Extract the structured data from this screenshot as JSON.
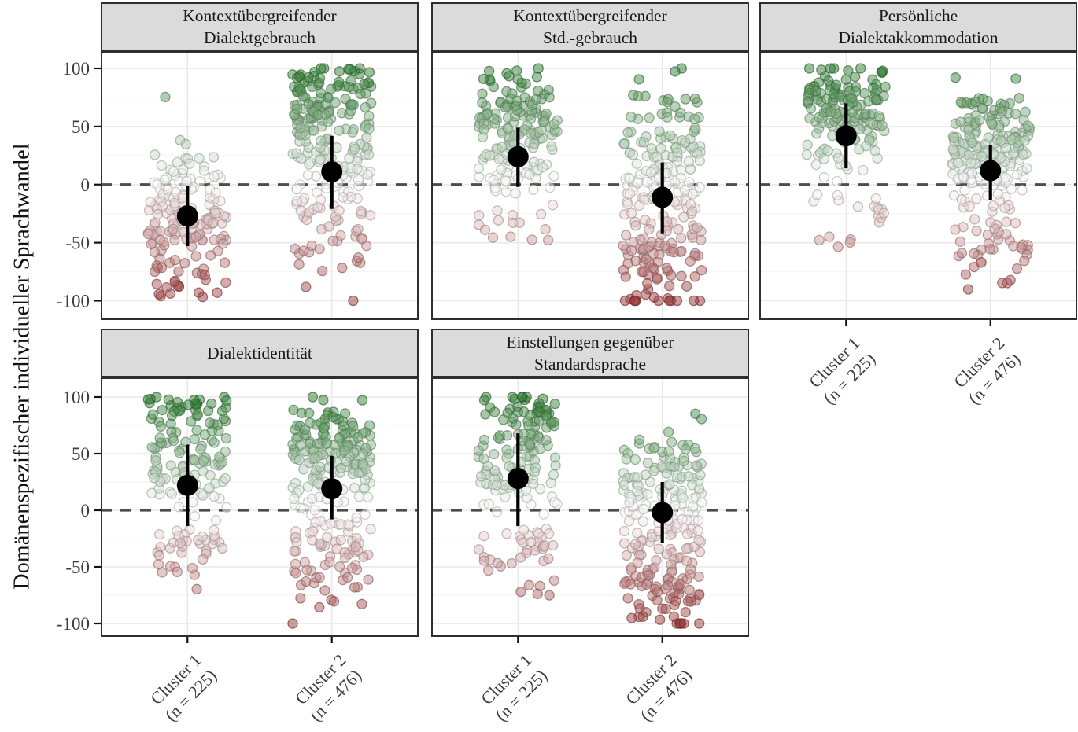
{
  "figure": {
    "y_axis_label": "Domänenspezifischer individueller Sprachwandel"
  },
  "chart_data": {
    "type": "scatter",
    "variant": "faceted jitter points with mean and sd pointrange",
    "facet_layout": "3 columns x 2 rows, bottom-right cell empty",
    "y_label": "Domänenspezifischer individueller Sprachwandel",
    "y_ticks": [
      100,
      50,
      0,
      -50,
      -100
    ],
    "ylim": [
      -113,
      110
    ],
    "reference_line_y": 0,
    "grid": "major 50 / minor 25, light gray; vertical major at category positions",
    "legend_position": "none",
    "x_categories": [
      {
        "lines": [
          "Cluster 1",
          "(n = 225)"
        ],
        "n": 225
      },
      {
        "lines": [
          "Cluster 2",
          "(n = 476)"
        ],
        "n": 476
      }
    ],
    "facets": [
      {
        "title_lines": [
          "Kontextübergreifender",
          "Dialektgebrauch"
        ],
        "summaries": [
          {
            "cluster": "Cluster 1",
            "mean": -27,
            "lower": -53,
            "upper": -1
          },
          {
            "cluster": "Cluster 2",
            "mean": 11,
            "lower": -21,
            "upper": 42
          }
        ],
        "cloud": [
          {
            "n": 170,
            "seed": 101,
            "mix": [
              [
                0.55,
                -32,
                17
              ],
              [
                0.14,
                -80,
                13
              ],
              [
                0.22,
                6,
                11
              ],
              [
                0.08,
                30,
                16
              ],
              [
                0.01,
                73,
                2
              ]
            ]
          },
          {
            "n": 240,
            "seed": 102,
            "mix": [
              [
                0.3,
                82,
                14
              ],
              [
                0.22,
                52,
                14
              ],
              [
                0.23,
                10,
                16
              ],
              [
                0.25,
                -35,
                30
              ]
            ]
          }
        ]
      },
      {
        "title_lines": [
          "Kontextübergreifender",
          "Std.-gebrauch"
        ],
        "summaries": [
          {
            "cluster": "Cluster 1",
            "mean": 24,
            "lower": -2,
            "upper": 49
          },
          {
            "cluster": "Cluster 2",
            "mean": -11,
            "lower": -42,
            "upper": 19
          }
        ],
        "cloud": [
          {
            "n": 170,
            "seed": 201,
            "mix": [
              [
                0.42,
                42,
                15
              ],
              [
                0.28,
                72,
                14
              ],
              [
                0.18,
                10,
                10
              ],
              [
                0.12,
                -30,
                18
              ]
            ]
          },
          {
            "n": 240,
            "seed": 202,
            "mix": [
              [
                0.18,
                60,
                18
              ],
              [
                0.22,
                22,
                14
              ],
              [
                0.22,
                -5,
                12
              ],
              [
                0.38,
                -62,
                26
              ]
            ]
          }
        ]
      },
      {
        "title_lines": [
          "Persönliche",
          "Dialektakkommodation"
        ],
        "summaries": [
          {
            "cluster": "Cluster 1",
            "mean": 42,
            "lower": 14,
            "upper": 70
          },
          {
            "cluster": "Cluster 2",
            "mean": 12,
            "lower": -13,
            "upper": 34
          }
        ],
        "cloud": [
          {
            "n": 175,
            "seed": 301,
            "mix": [
              [
                0.45,
                48,
                16
              ],
              [
                0.4,
                78,
                14
              ],
              [
                0.13,
                -15,
                10
              ],
              [
                0.02,
                -50,
                4
              ]
            ]
          },
          {
            "n": 235,
            "seed": 302,
            "mix": [
              [
                0.34,
                42,
                16
              ],
              [
                0.28,
                15,
                12
              ],
              [
                0.13,
                68,
                10
              ],
              [
                0.25,
                -38,
                26
              ]
            ]
          }
        ]
      },
      {
        "title_lines": [
          "Dialektidentität"
        ],
        "summaries": [
          {
            "cluster": "Cluster 1",
            "mean": 22,
            "lower": -14,
            "upper": 58
          },
          {
            "cluster": "Cluster 2",
            "mean": 19,
            "lower": -8,
            "upper": 48
          }
        ],
        "cloud": [
          {
            "n": 170,
            "seed": 401,
            "mix": [
              [
                0.38,
                55,
                18
              ],
              [
                0.2,
                92,
                8
              ],
              [
                0.22,
                25,
                12
              ],
              [
                0.15,
                -30,
                16
              ],
              [
                0.05,
                -60,
                14
              ]
            ]
          },
          {
            "n": 240,
            "seed": 402,
            "mix": [
              [
                0.4,
                62,
                17
              ],
              [
                0.25,
                30,
                14
              ],
              [
                0.2,
                -25,
                16
              ],
              [
                0.15,
                -55,
                18
              ]
            ]
          }
        ]
      },
      {
        "title_lines": [
          "Einstellungen gegenüber",
          "Standardsprache"
        ],
        "summaries": [
          {
            "cluster": "Cluster 1",
            "mean": 28,
            "lower": -14,
            "upper": 68
          },
          {
            "cluster": "Cluster 2",
            "mean": -2,
            "lower": -29,
            "upper": 25
          }
        ],
        "cloud": [
          {
            "n": 170,
            "seed": 501,
            "mix": [
              [
                0.36,
                55,
                17
              ],
              [
                0.25,
                88,
                10
              ],
              [
                0.2,
                25,
                12
              ],
              [
                0.14,
                -35,
                16
              ],
              [
                0.05,
                -65,
                12
              ]
            ]
          },
          {
            "n": 240,
            "seed": 502,
            "mix": [
              [
                0.16,
                52,
                14
              ],
              [
                0.22,
                20,
                14
              ],
              [
                0.2,
                -10,
                14
              ],
              [
                0.42,
                -60,
                26
              ]
            ]
          }
        ]
      }
    ],
    "colors": {
      "positive_high": "#2f7d33",
      "negative_low": "#9c3a3a",
      "mid": "#ffffff",
      "mean_point": "#000000",
      "dashed_reference": "#4d4d4d",
      "strip_background": "#dbdbdb",
      "panel_border": "#2e2e2e",
      "grid_major": "#e9e9e9",
      "grid_minor": "#f6f6f6",
      "tick_text": "#3d3d3d"
    }
  }
}
